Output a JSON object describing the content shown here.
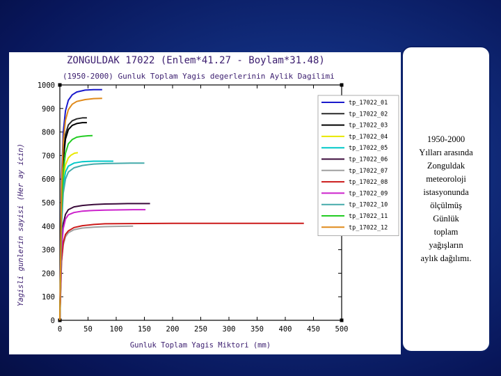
{
  "caption": "1950-2000\nYılları arasında\nZonguldak\nmeteoroloji\nistasyonunda\nölçülmüş\nGünlük\ntoplam\nyağışların\naylık dağılımı.",
  "chart_data": {
    "type": "line",
    "title": "ZONGULDAK 17022 (Enlem*41.27 - Boylam*31.48)",
    "subtitle": "(1950-2000) Gunluk Toplam Yagis degerlerinin Aylik Dagilimi",
    "xlabel": "Gunluk Toplam Yagis Miktori (mm)",
    "ylabel": "Yagisli gunlerin sayisi (Her ay icin)",
    "xlim": [
      0,
      500
    ],
    "ylim": [
      0,
      1000
    ],
    "xticks": [
      0,
      50,
      100,
      150,
      200,
      250,
      300,
      350,
      400,
      450,
      500
    ],
    "yticks": [
      0,
      100,
      200,
      300,
      400,
      500,
      600,
      700,
      800,
      900,
      1000
    ],
    "tick_labels_x": [
      "0",
      "50",
      "100",
      "150",
      "200",
      "250",
      "300",
      "350",
      "400",
      "450",
      "500"
    ],
    "tick_labels_y": [
      "0",
      "100",
      "200",
      "300",
      "400",
      "500",
      "600",
      "700",
      "800",
      "900",
      "1000"
    ],
    "legend_position": "top-right",
    "series": [
      {
        "name": "tp_17022_01",
        "color": "#1a1acc",
        "x": [
          0,
          3,
          6,
          10,
          15,
          22,
          30,
          45,
          60,
          75
        ],
        "y": [
          0,
          600,
          800,
          890,
          935,
          958,
          970,
          978,
          980,
          980
        ]
      },
      {
        "name": "tp_17022_02",
        "color": "#2a2a2a",
        "x": [
          0,
          3,
          6,
          10,
          15,
          22,
          30,
          40,
          48
        ],
        "y": [
          0,
          520,
          700,
          790,
          830,
          848,
          856,
          860,
          860
        ]
      },
      {
        "name": "tp_17022_03",
        "color": "#000000",
        "x": [
          0,
          3,
          6,
          10,
          15,
          22,
          30,
          40,
          48
        ],
        "y": [
          0,
          500,
          680,
          770,
          810,
          828,
          836,
          840,
          840
        ]
      },
      {
        "name": "tp_17022_04",
        "color": "#e8e800",
        "x": [
          0,
          3,
          6,
          10,
          15,
          20,
          26,
          32
        ],
        "y": [
          0,
          450,
          600,
          660,
          690,
          702,
          710,
          712
        ]
      },
      {
        "name": "tp_17022_05",
        "color": "#00c8c8",
        "x": [
          0,
          3,
          6,
          10,
          15,
          25,
          40,
          60,
          80,
          95
        ],
        "y": [
          0,
          430,
          570,
          630,
          655,
          668,
          674,
          676,
          676,
          676
        ]
      },
      {
        "name": "tp_17022_06",
        "color": "#3a0a3a",
        "x": [
          0,
          3,
          6,
          10,
          15,
          25,
          40,
          60,
          80,
          100,
          120,
          160
        ],
        "y": [
          0,
          310,
          410,
          450,
          470,
          482,
          488,
          492,
          494,
          495,
          496,
          496
        ]
      },
      {
        "name": "tp_17022_07",
        "color": "#a0a0a0",
        "x": [
          0,
          3,
          6,
          10,
          15,
          25,
          40,
          60,
          80,
          100,
          130
        ],
        "y": [
          0,
          250,
          320,
          355,
          372,
          385,
          392,
          396,
          398,
          399,
          400
        ]
      },
      {
        "name": "tp_17022_08",
        "color": "#cc1a1a",
        "x": [
          0,
          3,
          6,
          10,
          15,
          25,
          40,
          60,
          80,
          120,
          200,
          300,
          400,
          433
        ],
        "y": [
          0,
          250,
          330,
          365,
          380,
          394,
          402,
          407,
          410,
          411,
          412,
          412,
          412,
          412
        ]
      },
      {
        "name": "tp_17022_09",
        "color": "#cc22cc",
        "x": [
          0,
          3,
          6,
          10,
          15,
          25,
          40,
          60,
          80,
          100,
          130,
          152
        ],
        "y": [
          0,
          300,
          390,
          430,
          448,
          458,
          464,
          467,
          468,
          469,
          470,
          470
        ]
      },
      {
        "name": "tp_17022_10",
        "color": "#44aaaa",
        "x": [
          0,
          3,
          6,
          10,
          15,
          25,
          40,
          60,
          80,
          100,
          125,
          150
        ],
        "y": [
          0,
          400,
          540,
          600,
          630,
          648,
          658,
          664,
          666,
          667,
          668,
          668
        ]
      },
      {
        "name": "tp_17022_11",
        "color": "#22cc22",
        "x": [
          0,
          3,
          6,
          10,
          15,
          22,
          30,
          40,
          50,
          58
        ],
        "y": [
          0,
          470,
          630,
          710,
          750,
          768,
          778,
          782,
          784,
          785
        ]
      },
      {
        "name": "tp_17022_12",
        "color": "#e08a1a",
        "x": [
          0,
          3,
          6,
          10,
          15,
          22,
          30,
          45,
          60,
          75
        ],
        "y": [
          0,
          560,
          760,
          850,
          895,
          918,
          930,
          938,
          942,
          943
        ]
      }
    ]
  }
}
